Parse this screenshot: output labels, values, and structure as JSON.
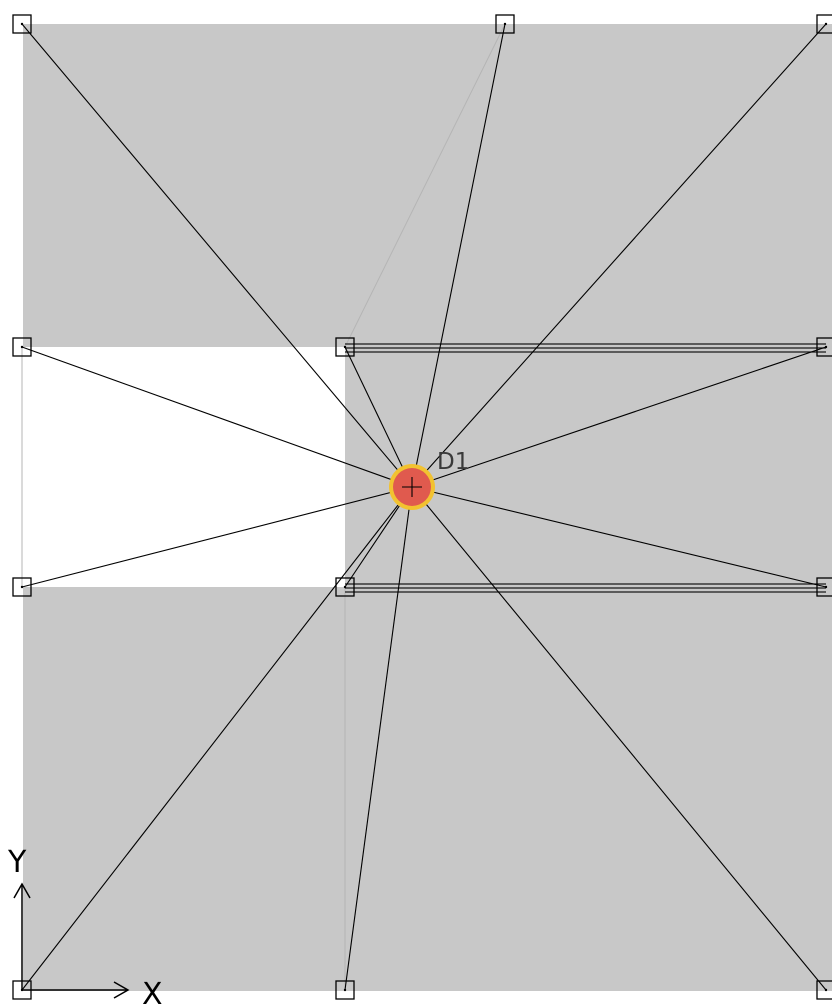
{
  "diagram": {
    "hub": {
      "id": "D1",
      "label": "D1",
      "color_outer": "#f2c230",
      "color_inner": "#e05a4e"
    },
    "node_count": 12,
    "axes": {
      "x_label": "X",
      "y_label": "Y"
    },
    "colors": {
      "region": "#c8c8c8",
      "background": "#ffffff",
      "lines": "#000000"
    }
  }
}
